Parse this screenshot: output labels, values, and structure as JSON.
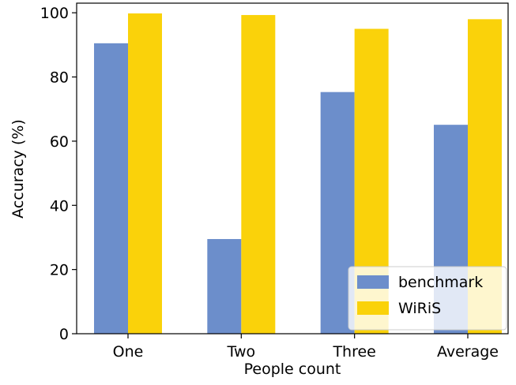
{
  "chart_data": {
    "type": "bar",
    "title": "",
    "xlabel": "People count",
    "ylabel": "Accuracy (%)",
    "categories": [
      "One",
      "Two",
      "Three",
      "Average"
    ],
    "series": [
      {
        "name": "benchmark",
        "color": "#6c8ecb",
        "values": [
          90.5,
          29.5,
          75.3,
          65.1
        ]
      },
      {
        "name": "WiRiS",
        "color": "#fad20a",
        "values": [
          99.8,
          99.3,
          95.0,
          98.0
        ]
      }
    ],
    "ylim": [
      0,
      103
    ],
    "yticks": [
      0,
      20,
      40,
      60,
      80,
      100
    ],
    "grid": false,
    "legend_position": "lower-right"
  }
}
